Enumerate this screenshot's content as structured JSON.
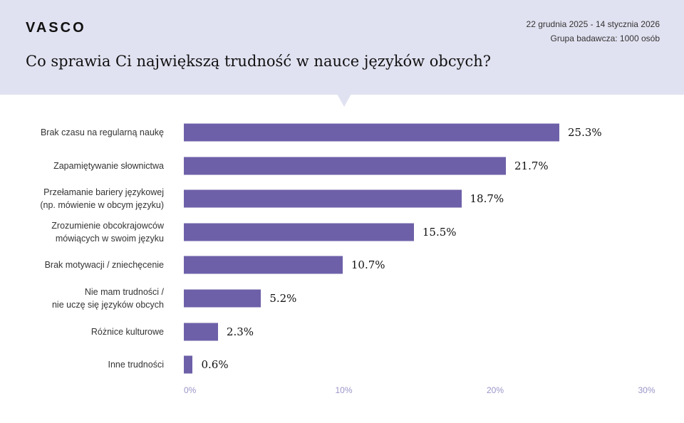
{
  "header": {
    "logo": "VASCO",
    "date_range": "22 grudnia 2025 - 14 stycznia 2026",
    "sample": "Grupa badawcza: 1000 osób",
    "background": "#e1e2f1"
  },
  "chart_data": {
    "type": "bar",
    "orientation": "horizontal",
    "title": "Co sprawia Ci największą trudność w nauce języków obcych?",
    "categories": [
      "Brak czasu na regularną naukę",
      "Zapamiętywanie słownictwa",
      "Przełamanie bariery językowej\n(np. mówienie w obcym języku)",
      "Zrozumienie obcokrajowców\nmówiących w swoim języku",
      "Brak motywacji / zniechęcenie",
      "Nie mam trudności /\nnie uczę się języków obcych",
      "Różnice kulturowe",
      "Inne trudności"
    ],
    "values": [
      25.3,
      21.7,
      18.7,
      15.5,
      10.7,
      5.2,
      2.3,
      0.6
    ],
    "value_labels": [
      "25.3%",
      "21.7%",
      "18.7%",
      "15.5%",
      "10.7%",
      "5.2%",
      "2.3%",
      "0.6%"
    ],
    "xlim": [
      0,
      30
    ],
    "x_ticks": [
      "0%",
      "10%",
      "20%",
      "30%"
    ],
    "grid": false,
    "bar_color": "#6e60a8"
  }
}
